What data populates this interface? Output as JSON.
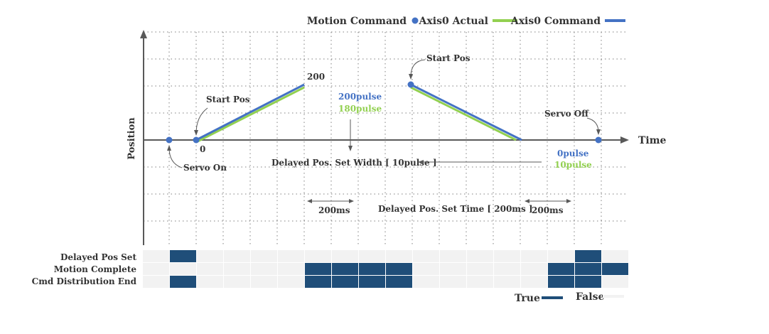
{
  "legend": {
    "motion_command": "Motion Command",
    "axis0_actual": "Axis0 Actual",
    "axis0_command": "Axis0 Command"
  },
  "axes": {
    "x_label": "Time",
    "y_label": "Position"
  },
  "annotations": {
    "val_200": "200",
    "val_0": "0",
    "start_pos_1": "Start Pos",
    "start_pos_2": "Start Pos",
    "servo_on": "Servo On",
    "servo_off": "Servo Off",
    "cmd_200pulse": "200pulse",
    "act_180pulse": "180pulse",
    "cmd_0pulse": "0pulse",
    "act_10pulse": "10pulse",
    "delayed_width": "Delayed Pos. Set Width [ 10pulse ]",
    "delayed_time": "Delayed Pos. Set Time [ 200ms ]",
    "ms_left": "200ms",
    "ms_right": "200ms"
  },
  "signals": {
    "labels": [
      "Delayed Pos Set",
      "Motion Complete",
      "Cmd Distribution End"
    ],
    "columns": 18,
    "rows": [
      [
        0,
        1,
        0,
        0,
        0,
        0,
        0,
        0,
        0,
        0,
        0,
        0,
        0,
        0,
        0,
        0,
        1,
        0
      ],
      [
        0,
        0,
        0,
        0,
        0,
        0,
        1,
        1,
        1,
        1,
        0,
        0,
        0,
        0,
        0,
        1,
        1,
        1
      ],
      [
        0,
        1,
        0,
        0,
        0,
        0,
        1,
        1,
        1,
        1,
        0,
        0,
        0,
        0,
        0,
        1,
        1,
        0
      ]
    ],
    "true_label": "True",
    "false_label": "False"
  },
  "colors": {
    "command": "#4472c4",
    "actual": "#92d050",
    "signal_true": "#1f4e79",
    "signal_false": "#f2f2f2",
    "axis": "#595959",
    "grid": "#7f7f7f"
  }
}
